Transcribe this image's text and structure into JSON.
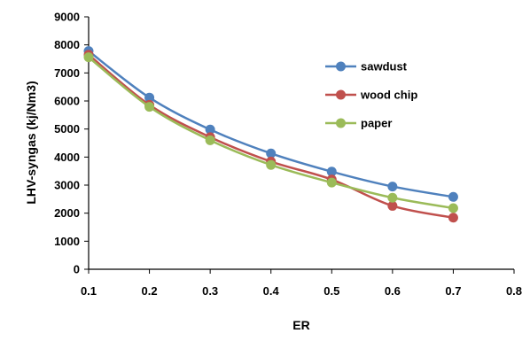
{
  "chart_data": {
    "type": "line",
    "xlabel": "ER",
    "ylabel": "LHV-syngas (kj/Nm3)",
    "x": [
      0.1,
      0.2,
      0.3,
      0.4,
      0.5,
      0.6,
      0.7
    ],
    "xlim": [
      0.1,
      0.8
    ],
    "ylim": [
      0,
      9000
    ],
    "xticks": [
      "0.1",
      "0.2",
      "0.3",
      "0.4",
      "0.5",
      "0.6",
      "0.7",
      "0.8"
    ],
    "yticks": [
      "0",
      "1000",
      "2000",
      "3000",
      "4000",
      "5000",
      "6000",
      "7000",
      "8000",
      "9000"
    ],
    "grid": false,
    "legend_position": "top-right",
    "series": [
      {
        "name": "sawdust",
        "color": "#4F81BD",
        "values": [
          7780,
          6120,
          4980,
          4130,
          3480,
          2950,
          2580
        ]
      },
      {
        "name": "wood chip",
        "color": "#C0504D",
        "values": [
          7650,
          5860,
          4710,
          3840,
          3200,
          2260,
          1840
        ]
      },
      {
        "name": "paper",
        "color": "#9BBB59",
        "values": [
          7560,
          5790,
          4600,
          3720,
          3090,
          2550,
          2180
        ]
      }
    ]
  }
}
